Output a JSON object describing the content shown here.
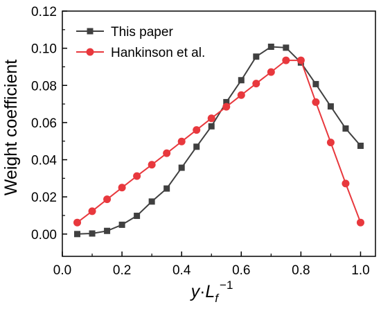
{
  "chart_data": {
    "type": "line",
    "title": "",
    "xlabel": "y·L_f^−1",
    "xlabel_parts": {
      "y": "y",
      "dot": "·",
      "L": "L",
      "sub": "f",
      "sup": "−1"
    },
    "ylabel": "Weight coefficient",
    "xlim": [
      0.0,
      1.05
    ],
    "ylim": [
      -0.012,
      0.12
    ],
    "x_ticks": [
      0.0,
      0.2,
      0.4,
      0.6,
      0.8,
      1.0
    ],
    "x_tick_labels": [
      "0.0",
      "0.2",
      "0.4",
      "0.6",
      "0.8",
      "1.0"
    ],
    "y_ticks": [
      0.0,
      0.02,
      0.04,
      0.06,
      0.08,
      0.1,
      0.12
    ],
    "y_tick_labels": [
      "0.00",
      "0.02",
      "0.04",
      "0.06",
      "0.08",
      "0.10",
      "0.12"
    ],
    "grid": false,
    "legend_position": "top-left",
    "series": [
      {
        "name": "This paper",
        "color": "#404040",
        "marker": "square",
        "x": [
          0.05,
          0.1,
          0.15,
          0.2,
          0.25,
          0.3,
          0.35,
          0.4,
          0.45,
          0.5,
          0.55,
          0.6,
          0.65,
          0.7,
          0.75,
          0.8,
          0.85,
          0.9,
          0.95,
          1.0
        ],
        "values": [
          0.0,
          0.0003,
          0.0017,
          0.005,
          0.0098,
          0.0175,
          0.0245,
          0.0357,
          0.047,
          0.058,
          0.071,
          0.0828,
          0.0955,
          0.1008,
          0.1003,
          0.0923,
          0.0807,
          0.0687,
          0.0568,
          0.0475
        ]
      },
      {
        "name": "Hankinson et al.",
        "color": "#e8383d",
        "marker": "circle",
        "x": [
          0.05,
          0.1,
          0.15,
          0.2,
          0.25,
          0.3,
          0.35,
          0.4,
          0.45,
          0.5,
          0.55,
          0.6,
          0.65,
          0.7,
          0.75,
          0.8,
          0.85,
          0.9,
          0.95,
          1.0
        ],
        "values": [
          0.0062,
          0.0123,
          0.0187,
          0.025,
          0.0312,
          0.0373,
          0.0435,
          0.0498,
          0.056,
          0.0623,
          0.0685,
          0.0748,
          0.081,
          0.0872,
          0.0935,
          0.0935,
          0.071,
          0.0493,
          0.0272,
          0.0062
        ]
      }
    ]
  }
}
